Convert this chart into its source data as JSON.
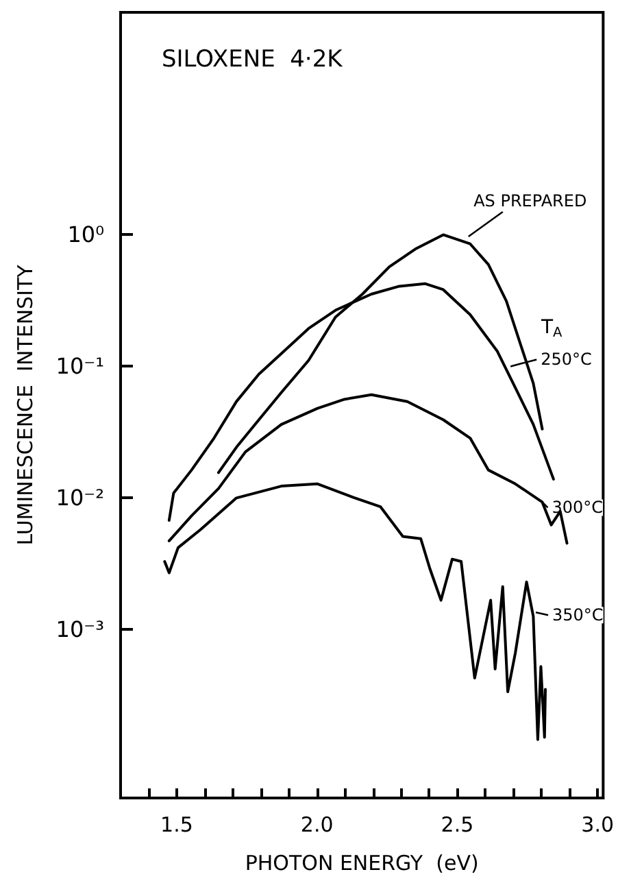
{
  "chart_data": {
    "type": "line",
    "title": "SILOXENE  4·2K",
    "xlabel": "PHOTON ENERGY  (eV)",
    "ylabel": "LUMINESCENCE  INTENSITY",
    "log": "y",
    "grid": false,
    "marker": "none",
    "line_style": "solid",
    "xlim": [
      1.3,
      3.02
    ],
    "ylim": [
      5.25e-05,
      49
    ],
    "xticks": [
      {
        "value": 1.4,
        "label": null
      },
      {
        "value": 1.5,
        "label": "1.5"
      },
      {
        "value": 1.6,
        "label": null
      },
      {
        "value": 1.7,
        "label": null
      },
      {
        "value": 1.8,
        "label": null
      },
      {
        "value": 1.9,
        "label": null
      },
      {
        "value": 2.0,
        "label": "2.0"
      },
      {
        "value": 2.1,
        "label": null
      },
      {
        "value": 2.2,
        "label": null
      },
      {
        "value": 2.3,
        "label": null
      },
      {
        "value": 2.4,
        "label": null
      },
      {
        "value": 2.5,
        "label": "2.5"
      },
      {
        "value": 2.6,
        "label": null
      },
      {
        "value": 2.7,
        "label": null
      },
      {
        "value": 2.8,
        "label": null
      },
      {
        "value": 2.9,
        "label": null
      },
      {
        "value": 3.0,
        "label": "3.0"
      }
    ],
    "yticks": [
      {
        "value": 1,
        "label": "10⁰"
      },
      {
        "value": 0.1,
        "label": "10⁻¹"
      },
      {
        "value": 0.01,
        "label": "10⁻²"
      },
      {
        "value": 0.001,
        "label": "10⁻³"
      }
    ],
    "series": [
      {
        "color": "#000000",
        "x": [
          1.649,
          1.713,
          1.793,
          1.873,
          1.97,
          2.066,
          2.162,
          2.258,
          2.354,
          2.45,
          2.546,
          2.611,
          2.675,
          2.739,
          2.771,
          2.803
        ],
        "values": [
          0.0156,
          0.0243,
          0.0393,
          0.0634,
          0.111,
          0.237,
          0.354,
          0.571,
          0.787,
          1.0,
          0.853,
          0.594,
          0.314,
          0.12,
          0.0744,
          0.0334
        ]
      },
      {
        "color": "#000000",
        "x": [
          1.473,
          1.489,
          1.553,
          1.633,
          1.713,
          1.793,
          1.873,
          1.97,
          2.066,
          2.194,
          2.29,
          2.386,
          2.45,
          2.546,
          2.643,
          2.707,
          2.771,
          2.843
        ],
        "values": [
          0.00676,
          0.0109,
          0.0163,
          0.0285,
          0.0541,
          0.0873,
          0.125,
          0.194,
          0.267,
          0.354,
          0.405,
          0.425,
          0.383,
          0.247,
          0.13,
          0.0687,
          0.0362,
          0.0139
        ]
      },
      {
        "color": "#000000",
        "x": [
          1.473,
          1.553,
          1.649,
          1.745,
          1.873,
          2.002,
          2.098,
          2.194,
          2.322,
          2.45,
          2.546,
          2.611,
          2.707,
          2.803,
          2.835,
          2.867,
          2.891
        ],
        "values": [
          0.00472,
          0.00732,
          0.0118,
          0.0224,
          0.0362,
          0.048,
          0.0562,
          0.0609,
          0.054,
          0.0393,
          0.0285,
          0.0163,
          0.0128,
          0.0093,
          0.00624,
          0.00792,
          0.00453
        ]
      },
      {
        "color": "#000000",
        "x": [
          1.457,
          1.473,
          1.505,
          1.585,
          1.713,
          1.873,
          2.002,
          2.13,
          2.226,
          2.306,
          2.37,
          2.402,
          2.442,
          2.482,
          2.514,
          2.562,
          2.619,
          2.635,
          2.662,
          2.68,
          2.707,
          2.747,
          2.771,
          2.787,
          2.798,
          2.811,
          2.814
        ],
        "values": [
          0.00329,
          0.0027,
          0.00419,
          0.00575,
          0.01,
          0.0123,
          0.0128,
          0.0101,
          0.00859,
          0.0051,
          0.0049,
          0.00292,
          0.00167,
          0.00343,
          0.00329,
          0.000428,
          0.00167,
          0.000502,
          0.00212,
          0.000337,
          0.000665,
          0.0023,
          0.00126,
          0.000146,
          0.000524,
          0.000152,
          0.000351
        ]
      }
    ],
    "annotations": [
      {
        "text": "AS PREPARED",
        "x": 2.54,
        "y": 0.97
      },
      "T$_{A}$",
      {
        "text": "250°C",
        "x": 2.69,
        "y": 0.1
      },
      {
        "text": "300°C",
        "x": 2.803,
        "y": 0.0093
      },
      {
        "text": "350°C",
        "x": 2.78,
        "y": 0.00135
      }
    ]
  }
}
